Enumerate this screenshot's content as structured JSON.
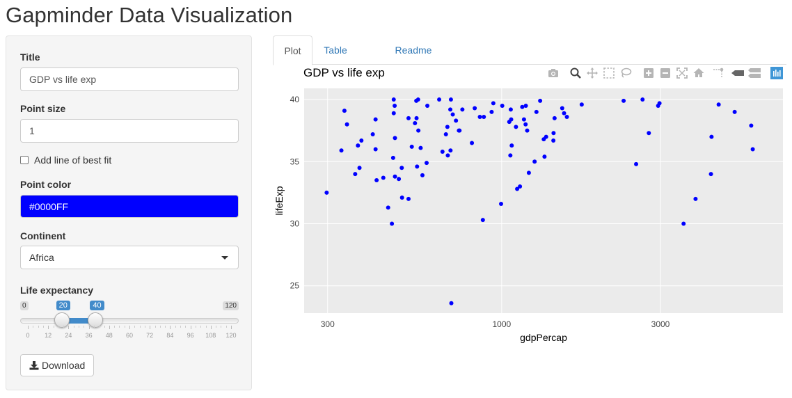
{
  "app": {
    "title": "Gapminder Data Visualization"
  },
  "sidebar": {
    "title_label": "Title",
    "title_value": "GDP vs life exp",
    "point_size_label": "Point size",
    "point_size_value": "1",
    "best_fit_label": "Add line of best fit",
    "best_fit_checked": false,
    "point_color_label": "Point color",
    "point_color_value": "#0000FF",
    "continent_label": "Continent",
    "continent_value": "Africa",
    "life_exp_label": "Life expectancy",
    "slider": {
      "min": "0",
      "max": "120",
      "from": "20",
      "to": "40",
      "grid": [
        "0",
        "12",
        "24",
        "36",
        "48",
        "60",
        "72",
        "84",
        "96",
        "108",
        "120"
      ]
    },
    "download_label": "Download"
  },
  "tabs": [
    {
      "label": "Plot",
      "active": true
    },
    {
      "label": "Table",
      "active": false
    },
    {
      "label": "Readme",
      "active": false
    }
  ],
  "modebar_icons": [
    "camera-icon",
    "zoom-icon",
    "pan-icon",
    "box-select-icon",
    "lasso-icon",
    "zoom-in-icon",
    "zoom-out-icon",
    "autoscale-icon",
    "reset-axes-icon",
    "spike-lines-icon",
    "hover-closest-icon",
    "hover-compare-icon",
    "plotly-logo-icon"
  ],
  "chart_data": {
    "type": "scatter",
    "title": "GDP vs life exp",
    "xlabel": "gdpPercap",
    "ylabel": "lifeExp",
    "x_scale": "log",
    "xlim": [
      255,
      7000
    ],
    "ylim": [
      22.8,
      40.9
    ],
    "x_ticks": [
      "300",
      "1000",
      "3000"
    ],
    "y_ticks": [
      "25",
      "30",
      "35",
      "40"
    ],
    "marker_color": "#0000FF",
    "points": [
      [
        298,
        32.5
      ],
      [
        330,
        35.9
      ],
      [
        337,
        39.1
      ],
      [
        343,
        38.0
      ],
      [
        363,
        34.0
      ],
      [
        370,
        36.3
      ],
      [
        374,
        34.5
      ],
      [
        379,
        36.7
      ],
      [
        410,
        37.2
      ],
      [
        418,
        38.4
      ],
      [
        418,
        36.0
      ],
      [
        421,
        33.5
      ],
      [
        441,
        33.7
      ],
      [
        456,
        31.3
      ],
      [
        468,
        30.0
      ],
      [
        472,
        35.3
      ],
      [
        474,
        38.9
      ],
      [
        474,
        40.0
      ],
      [
        477,
        39.5
      ],
      [
        478,
        36.9
      ],
      [
        478,
        33.8
      ],
      [
        491,
        33.6
      ],
      [
        501,
        34.5
      ],
      [
        502,
        32.1
      ],
      [
        525,
        38.5
      ],
      [
        525,
        32.0
      ],
      [
        537,
        36.2
      ],
      [
        549,
        38.1
      ],
      [
        554,
        39.9
      ],
      [
        555,
        38.5
      ],
      [
        557,
        34.6
      ],
      [
        561,
        40.0
      ],
      [
        562,
        37.5
      ],
      [
        571,
        36.1
      ],
      [
        578,
        33.9
      ],
      [
        595,
        34.9
      ],
      [
        598,
        39.5
      ],
      [
        649,
        40.0
      ],
      [
        664,
        35.8
      ],
      [
        680,
        37.2
      ],
      [
        687,
        37.8
      ],
      [
        689,
        35.5
      ],
      [
        701,
        39.2
      ],
      [
        702,
        35.9
      ],
      [
        704,
        40.0
      ],
      [
        706,
        23.6
      ],
      [
        713,
        38.8
      ],
      [
        729,
        38.3
      ],
      [
        744,
        37.5
      ],
      [
        747,
        37.5
      ],
      [
        762,
        39.2
      ],
      [
        814,
        36.5
      ],
      [
        830,
        39.3
      ],
      [
        860,
        38.6
      ],
      [
        878,
        30.3
      ],
      [
        884,
        38.6
      ],
      [
        933,
        39.0
      ],
      [
        944,
        39.7
      ],
      [
        996,
        31.6
      ],
      [
        1004,
        39.5
      ],
      [
        1054,
        38.2
      ],
      [
        1062,
        35.5
      ],
      [
        1065,
        39.2
      ],
      [
        1068,
        38.4
      ],
      [
        1072,
        36.3
      ],
      [
        1104,
        37.8
      ],
      [
        1113,
        32.8
      ],
      [
        1135,
        33.0
      ],
      [
        1153,
        39.4
      ],
      [
        1167,
        38.4
      ],
      [
        1180,
        38.0
      ],
      [
        1182,
        39.5
      ],
      [
        1193,
        37.5
      ],
      [
        1207,
        34.1
      ],
      [
        1256,
        35.0
      ],
      [
        1272,
        39.0
      ],
      [
        1305,
        39.9
      ],
      [
        1338,
        36.8
      ],
      [
        1345,
        35.4
      ],
      [
        1360,
        37.0
      ],
      [
        1430,
        36.7
      ],
      [
        1432,
        37.3
      ],
      [
        1442,
        38.5
      ],
      [
        1520,
        39.3
      ],
      [
        1540,
        38.9
      ],
      [
        1570,
        38.6
      ],
      [
        1740,
        39.6
      ],
      [
        2325,
        39.9
      ],
      [
        2535,
        34.8
      ],
      [
        2650,
        40.0
      ],
      [
        2768,
        37.3
      ],
      [
        2952,
        39.5
      ],
      [
        2980,
        39.7
      ],
      [
        3520,
        30.0
      ],
      [
        3824,
        32.0
      ],
      [
        4254,
        34.0
      ],
      [
        4271,
        37.0
      ],
      [
        4487,
        39.6
      ],
      [
        5012,
        39.0
      ],
      [
        5620,
        37.9
      ],
      [
        5680,
        36.0
      ]
    ]
  }
}
